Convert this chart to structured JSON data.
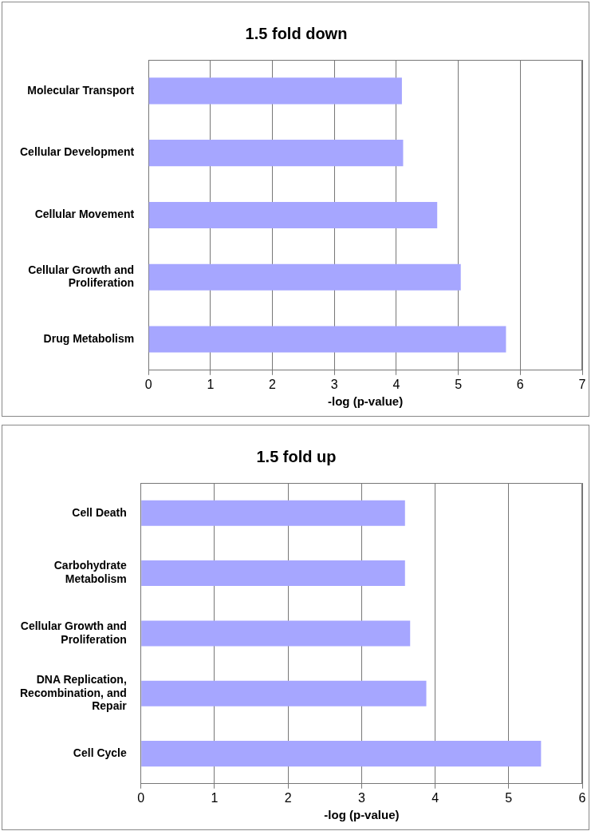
{
  "chart_data": [
    {
      "type": "bar",
      "orientation": "horizontal",
      "title": "1.5 fold down",
      "xlabel": "-log (p-value)",
      "categories": [
        "Molecular Transport",
        "Cellular Development",
        "Cellular Movement",
        "Cellular Growth and Proliferation",
        "Drug Metabolism"
      ],
      "values": [
        4.09,
        4.11,
        4.66,
        5.04,
        5.77
      ],
      "color": "#a6a6ff",
      "xlim": [
        0,
        7
      ],
      "xticks": [
        0,
        1,
        2,
        3,
        4,
        5,
        6,
        7
      ],
      "grid": "x",
      "legend": false
    },
    {
      "type": "bar",
      "orientation": "horizontal",
      "title": "1.5 fold up",
      "xlabel": "-log (p-value)",
      "categories": [
        "Cell Death",
        "Carbohydrate Metabolism",
        "Cellular Growth and Proliferation",
        "DNA Replication, Recombination, and Repair",
        "Cell Cycle"
      ],
      "values": [
        3.59,
        3.59,
        3.66,
        3.88,
        5.44
      ],
      "color": "#a6a6ff",
      "xlim": [
        0,
        6
      ],
      "xticks": [
        0,
        1,
        2,
        3,
        4,
        5,
        6
      ],
      "grid": "x",
      "legend": false
    }
  ]
}
